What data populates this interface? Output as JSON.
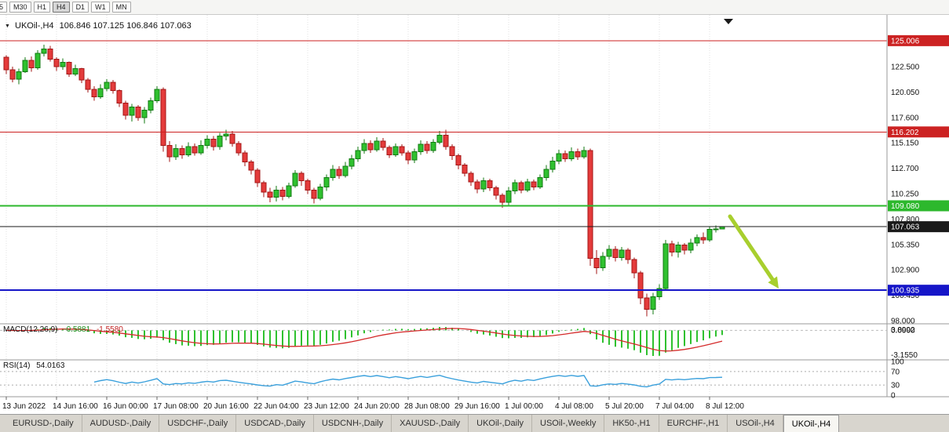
{
  "toolbar": {
    "timeframes": [
      "5",
      "M30",
      "H1",
      "H4",
      "D1",
      "W1",
      "MN"
    ],
    "active": "H4"
  },
  "chart": {
    "symbol": "UKOil-,H4",
    "ohlc_line": "106.846 107.125 106.846 107.063"
  },
  "indicators": {
    "macd": {
      "name": "MACD(12,26,9)",
      "value": "-0.5881",
      "signal_value": "-1.5580"
    },
    "rsi": {
      "name": "RSI(14)",
      "value": "54.0163"
    }
  },
  "chart_data": {
    "type": "candlestick",
    "symbol": "UKOil-",
    "timeframe": "H4",
    "last_quote": {
      "open": 106.846,
      "high": 107.125,
      "low": 106.846,
      "close": 107.063
    },
    "y_ticks": [
      122.5,
      120.05,
      117.6,
      115.15,
      112.7,
      110.25,
      107.8,
      105.35,
      102.9,
      100.45,
      98.0
    ],
    "levels": [
      {
        "name": "resistance-line-upper",
        "price": 125.006,
        "label": "125.006",
        "color": "#cc2222",
        "width": 1
      },
      {
        "name": "resistance-line-lower",
        "price": 116.202,
        "label": "116.202",
        "color": "#cc2222",
        "width": 1
      },
      {
        "name": "support-line-green",
        "price": 109.08,
        "label": "109.080",
        "color": "#2db82d",
        "width": 2
      },
      {
        "name": "current-price-line",
        "price": 107.063,
        "label": "107.063",
        "color": "#1a1a1a",
        "width": 1
      },
      {
        "name": "support-line-blue",
        "price": 100.935,
        "label": "100.935",
        "color": "#1515c8",
        "width": 2
      }
    ],
    "x_labels": [
      {
        "i": 0,
        "t": "13 Jun 2022"
      },
      {
        "i": 8,
        "t": "14 Jun 16:00"
      },
      {
        "i": 16,
        "t": "16 Jun 00:00"
      },
      {
        "i": 24,
        "t": "17 Jun 08:00"
      },
      {
        "i": 32,
        "t": "20 Jun 16:00"
      },
      {
        "i": 40,
        "t": "22 Jun 04:00"
      },
      {
        "i": 48,
        "t": "23 Jun 12:00"
      },
      {
        "i": 56,
        "t": "24 Jun 20:00"
      },
      {
        "i": 64,
        "t": "28 Jun 08:00"
      },
      {
        "i": 72,
        "t": "29 Jun 16:00"
      },
      {
        "i": 80,
        "t": "1 Jul 00:00"
      },
      {
        "i": 88,
        "t": "4 Jul 08:00"
      },
      {
        "i": 96,
        "t": "5 Jul 20:00"
      },
      {
        "i": 104,
        "t": "7 Jul 04:00"
      },
      {
        "i": 112,
        "t": "8 Jul 12:00"
      }
    ],
    "candles": [
      [
        123.4,
        123.6,
        121.8,
        122.2
      ],
      [
        122.2,
        122.5,
        121.0,
        121.3
      ],
      [
        121.3,
        122.3,
        120.8,
        122.0
      ],
      [
        122.0,
        123.4,
        121.9,
        123.1
      ],
      [
        123.1,
        123.5,
        122.0,
        122.4
      ],
      [
        122.4,
        124.1,
        122.2,
        123.8
      ],
      [
        123.8,
        124.6,
        123.5,
        124.2
      ],
      [
        124.2,
        124.5,
        123.0,
        123.2
      ],
      [
        123.2,
        123.4,
        122.1,
        122.5
      ],
      [
        122.5,
        123.3,
        122.2,
        122.9
      ],
      [
        122.9,
        123.0,
        121.5,
        121.8
      ],
      [
        121.8,
        122.7,
        121.6,
        122.3
      ],
      [
        122.3,
        122.4,
        120.9,
        121.2
      ],
      [
        121.2,
        121.4,
        120.0,
        120.3
      ],
      [
        120.3,
        120.6,
        119.2,
        119.6
      ],
      [
        119.6,
        120.8,
        119.4,
        120.4
      ],
      [
        120.4,
        121.3,
        120.1,
        121.0
      ],
      [
        121.0,
        121.2,
        119.9,
        120.2
      ],
      [
        120.2,
        120.3,
        118.6,
        119.0
      ],
      [
        119.0,
        119.2,
        117.4,
        117.8
      ],
      [
        117.8,
        118.9,
        117.2,
        118.6
      ],
      [
        118.6,
        118.8,
        117.3,
        117.6
      ],
      [
        117.6,
        118.6,
        117.0,
        118.3
      ],
      [
        118.3,
        119.5,
        118.0,
        119.2
      ],
      [
        119.2,
        120.6,
        119.0,
        120.3
      ],
      [
        120.3,
        120.5,
        114.3,
        114.9
      ],
      [
        114.9,
        115.3,
        113.3,
        113.8
      ],
      [
        113.8,
        115.0,
        113.5,
        114.6
      ],
      [
        114.6,
        114.9,
        113.6,
        114.0
      ],
      [
        114.0,
        115.2,
        113.8,
        114.8
      ],
      [
        114.8,
        115.1,
        113.9,
        114.2
      ],
      [
        114.2,
        115.4,
        114.0,
        114.9
      ],
      [
        114.9,
        115.9,
        114.6,
        115.5
      ],
      [
        115.5,
        115.8,
        114.4,
        114.8
      ],
      [
        114.8,
        116.1,
        114.5,
        115.8
      ],
      [
        115.8,
        116.4,
        115.4,
        116.0
      ],
      [
        116.0,
        116.3,
        114.8,
        115.1
      ],
      [
        115.1,
        115.3,
        113.9,
        114.2
      ],
      [
        114.2,
        114.4,
        112.9,
        113.3
      ],
      [
        113.3,
        113.5,
        112.1,
        112.5
      ],
      [
        112.5,
        112.7,
        110.9,
        111.3
      ],
      [
        111.3,
        111.5,
        109.9,
        110.4
      ],
      [
        110.4,
        110.8,
        109.4,
        109.9
      ],
      [
        109.9,
        111.0,
        109.5,
        110.6
      ],
      [
        110.6,
        110.9,
        109.6,
        110.0
      ],
      [
        110.0,
        111.3,
        109.8,
        111.0
      ],
      [
        111.0,
        112.5,
        110.8,
        112.2
      ],
      [
        112.2,
        112.4,
        111.0,
        111.5
      ],
      [
        111.5,
        111.7,
        110.2,
        110.6
      ],
      [
        110.6,
        110.8,
        109.3,
        109.8
      ],
      [
        109.8,
        111.2,
        109.6,
        110.9
      ],
      [
        110.9,
        112.1,
        110.5,
        111.8
      ],
      [
        111.8,
        113.0,
        111.5,
        112.6
      ],
      [
        112.6,
        112.9,
        111.7,
        112.0
      ],
      [
        112.0,
        113.3,
        111.8,
        112.9
      ],
      [
        112.9,
        114.0,
        112.6,
        113.6
      ],
      [
        113.6,
        114.8,
        113.3,
        114.4
      ],
      [
        114.4,
        115.5,
        114.1,
        115.1
      ],
      [
        115.1,
        115.4,
        114.2,
        114.5
      ],
      [
        114.5,
        115.7,
        114.3,
        115.3
      ],
      [
        115.3,
        115.6,
        114.4,
        114.7
      ],
      [
        114.7,
        114.9,
        113.7,
        114.0
      ],
      [
        114.0,
        115.1,
        113.8,
        114.8
      ],
      [
        114.8,
        115.0,
        113.9,
        114.2
      ],
      [
        114.2,
        114.4,
        113.1,
        113.5
      ],
      [
        113.5,
        114.6,
        113.2,
        114.3
      ],
      [
        114.3,
        115.4,
        114.0,
        115.0
      ],
      [
        115.0,
        115.3,
        114.1,
        114.4
      ],
      [
        114.4,
        115.5,
        114.2,
        115.2
      ],
      [
        115.2,
        116.3,
        115.0,
        115.9
      ],
      [
        115.9,
        116.4,
        114.5,
        114.8
      ],
      [
        114.8,
        115.0,
        113.5,
        113.9
      ],
      [
        113.9,
        114.1,
        112.6,
        113.0
      ],
      [
        113.0,
        113.2,
        111.9,
        112.2
      ],
      [
        112.2,
        112.4,
        111.0,
        111.4
      ],
      [
        111.4,
        111.6,
        110.3,
        110.7
      ],
      [
        110.7,
        111.8,
        110.4,
        111.5
      ],
      [
        111.5,
        111.7,
        110.5,
        110.8
      ],
      [
        110.8,
        111.0,
        109.7,
        110.1
      ],
      [
        110.1,
        110.3,
        108.9,
        109.4
      ],
      [
        109.4,
        110.9,
        109.1,
        110.5
      ],
      [
        110.5,
        111.6,
        110.2,
        111.3
      ],
      [
        111.3,
        111.5,
        110.3,
        110.6
      ],
      [
        110.6,
        111.7,
        110.4,
        111.4
      ],
      [
        111.4,
        111.6,
        110.6,
        110.9
      ],
      [
        110.9,
        112.1,
        110.7,
        111.8
      ],
      [
        111.8,
        113.0,
        111.5,
        112.6
      ],
      [
        112.6,
        113.8,
        112.3,
        113.4
      ],
      [
        113.4,
        114.5,
        113.1,
        114.1
      ],
      [
        114.1,
        114.4,
        113.3,
        113.6
      ],
      [
        113.6,
        114.7,
        113.4,
        114.3
      ],
      [
        114.3,
        114.6,
        113.5,
        113.8
      ],
      [
        113.8,
        114.8,
        113.6,
        114.4
      ],
      [
        114.4,
        114.6,
        103.3,
        104.0
      ],
      [
        104.0,
        104.8,
        102.5,
        103.1
      ],
      [
        103.1,
        104.6,
        102.8,
        104.2
      ],
      [
        104.2,
        105.3,
        103.9,
        104.9
      ],
      [
        104.9,
        105.2,
        103.7,
        104.1
      ],
      [
        104.1,
        105.1,
        103.8,
        104.8
      ],
      [
        104.8,
        105.0,
        103.5,
        103.9
      ],
      [
        103.9,
        104.1,
        102.1,
        102.6
      ],
      [
        102.6,
        102.8,
        99.6,
        100.2
      ],
      [
        100.2,
        100.6,
        98.4,
        99.1
      ],
      [
        99.1,
        100.7,
        98.6,
        100.3
      ],
      [
        100.3,
        101.5,
        100.0,
        101.1
      ],
      [
        101.1,
        105.8,
        100.9,
        105.4
      ],
      [
        105.4,
        105.7,
        104.2,
        104.6
      ],
      [
        104.6,
        105.6,
        104.1,
        105.3
      ],
      [
        105.3,
        105.5,
        104.4,
        104.8
      ],
      [
        104.8,
        105.9,
        104.5,
        105.5
      ],
      [
        105.5,
        106.3,
        105.2,
        106.0
      ],
      [
        106.0,
        106.5,
        105.4,
        105.8
      ],
      [
        105.8,
        107.1,
        105.6,
        106.8
      ],
      [
        106.8,
        107.2,
        106.5,
        106.846
      ],
      [
        106.846,
        107.125,
        106.846,
        107.063
      ]
    ],
    "macd_panel": {
      "display_values": "-0.5881 -1.5580",
      "axis_labels": [
        {
          "t": "3.8992",
          "pos": "top"
        },
        {
          "t": "0.0000",
          "pos": "zero"
        },
        {
          "t": "-3.1550",
          "pos": "bottom"
        }
      ]
    },
    "rsi_panel": {
      "display_value": "54.0163",
      "axis_labels": [
        {
          "v": 100,
          "t": "100"
        },
        {
          "v": 70,
          "t": "70"
        },
        {
          "v": 30,
          "t": "30"
        },
        {
          "v": 0,
          "t": "0"
        }
      ],
      "guide_levels": [
        70,
        30
      ]
    },
    "colors": {
      "up": "#2fc12f",
      "up_border": "#117a11",
      "down": "#e43b3b",
      "down_border": "#a31515",
      "macd_hist": "#2fc12f",
      "macd_signal": "#d42a2a",
      "rsi_line": "#3aa0dc",
      "arrow": "#a8cf2e",
      "level_red": "#cc2222",
      "level_green": "#2db82d",
      "level_blue": "#1515c8"
    }
  },
  "tabs": [
    {
      "label": "EURUSD-,Daily",
      "active": false
    },
    {
      "label": "AUDUSD-,Daily",
      "active": false
    },
    {
      "label": "USDCHF-,Daily",
      "active": false
    },
    {
      "label": "USDCAD-,Daily",
      "active": false
    },
    {
      "label": "USDCNH-,Daily",
      "active": false
    },
    {
      "label": "XAUUSD-,Daily",
      "active": false
    },
    {
      "label": "UKOil-,Daily",
      "active": false
    },
    {
      "label": "USOil-,Weekly",
      "active": false
    },
    {
      "label": "HK50-,H1",
      "active": false
    },
    {
      "label": "EURCHF-,H1",
      "active": false
    },
    {
      "label": "USOil-,H4",
      "active": false
    },
    {
      "label": "UKOil-,H4",
      "active": true
    }
  ]
}
